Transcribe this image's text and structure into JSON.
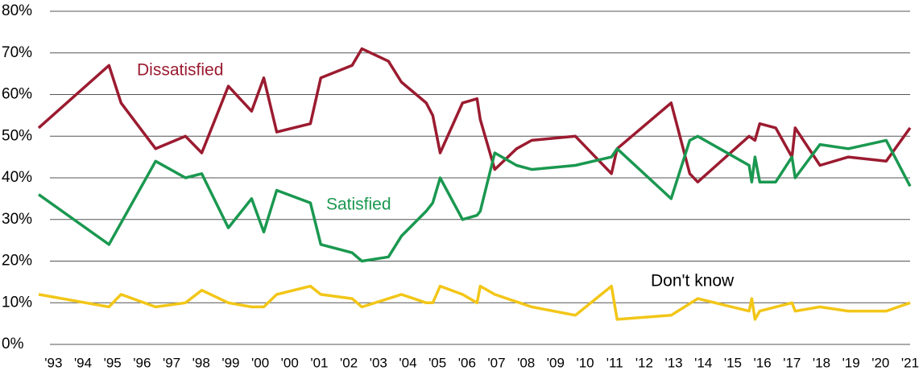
{
  "chart_data": {
    "type": "line",
    "xlim": [
      -0.5,
      29
    ],
    "xticks": [
      {
        "value": 0,
        "label": "'93"
      },
      {
        "value": 1,
        "label": "'94"
      },
      {
        "value": 2,
        "label": "'95"
      },
      {
        "value": 3,
        "label": "'96"
      },
      {
        "value": 4,
        "label": "'97"
      },
      {
        "value": 5,
        "label": "'98"
      },
      {
        "value": 6,
        "label": "'99"
      },
      {
        "value": 7,
        "label": "'00"
      },
      {
        "value": 8,
        "label": "'00"
      },
      {
        "value": 9,
        "label": "'01"
      },
      {
        "value": 10,
        "label": "'02"
      },
      {
        "value": 11,
        "label": "'03"
      },
      {
        "value": 12,
        "label": "'04"
      },
      {
        "value": 13,
        "label": "'05"
      },
      {
        "value": 14,
        "label": "'06"
      },
      {
        "value": 15,
        "label": "'07"
      },
      {
        "value": 16,
        "label": "'08"
      },
      {
        "value": 17,
        "label": "'09"
      },
      {
        "value": 18,
        "label": "'10"
      },
      {
        "value": 19,
        "label": "'11"
      },
      {
        "value": 20,
        "label": "'12"
      },
      {
        "value": 21,
        "label": "'13"
      },
      {
        "value": 22,
        "label": "'14"
      },
      {
        "value": 23,
        "label": "'15"
      },
      {
        "value": 24,
        "label": "'16"
      },
      {
        "value": 25,
        "label": "'17"
      },
      {
        "value": 26,
        "label": "'18"
      },
      {
        "value": 27,
        "label": "'19"
      },
      {
        "value": 28,
        "label": "'20"
      },
      {
        "value": 29,
        "label": "'21"
      }
    ],
    "ylim": [
      0,
      80
    ],
    "yticks": [
      {
        "value": 0,
        "label": "0%"
      },
      {
        "value": 10,
        "label": "10%"
      },
      {
        "value": 20,
        "label": "20%"
      },
      {
        "value": 30,
        "label": "30%"
      },
      {
        "value": 40,
        "label": "40%"
      },
      {
        "value": 50,
        "label": "50%"
      },
      {
        "value": 60,
        "label": "60%"
      },
      {
        "value": 70,
        "label": "70%"
      },
      {
        "value": 80,
        "label": "80%"
      }
    ],
    "grid": true,
    "series": [
      {
        "name": "Dissatisfied",
        "color": "#9b1b30",
        "x": [
          -0.5,
          1.88,
          2.29,
          3.46,
          4.47,
          5.02,
          5.92,
          6.71,
          7.12,
          7.56,
          8.7,
          9.05,
          10.11,
          10.44,
          11.34,
          11.78,
          12.62,
          12.84,
          13.09,
          13.85,
          14.34,
          14.45,
          14.94,
          15.68,
          16.19,
          17.67,
          18.89,
          19.08,
          20.91,
          21.54,
          21.81,
          23.55,
          23.75,
          23.91,
          24.45,
          25,
          25.11,
          25.95,
          26.91,
          28.19,
          29
        ],
        "values": [
          52,
          67,
          58,
          47,
          50,
          46,
          62,
          56,
          64,
          51,
          53,
          64,
          67,
          71,
          68,
          63,
          58,
          55,
          46,
          58,
          59,
          54,
          42,
          47,
          49,
          50,
          41,
          47,
          58,
          41,
          39,
          50,
          49,
          53,
          52,
          45,
          52,
          43,
          45,
          44,
          52
        ]
      },
      {
        "name": "Satisfied",
        "color": "#1a9850",
        "x": [
          -0.5,
          1.88,
          3.46,
          4.47,
          5.02,
          5.92,
          6.71,
          7.12,
          7.56,
          8.7,
          9.05,
          10.11,
          10.44,
          11.34,
          11.78,
          12.62,
          12.84,
          13.09,
          13.85,
          14.34,
          14.45,
          14.94,
          15.68,
          16.19,
          17.67,
          18.89,
          19.08,
          20.91,
          21.54,
          21.81,
          23.55,
          23.64,
          23.75,
          23.91,
          24.45,
          25,
          25.11,
          25.95,
          26.91,
          28.19,
          29
        ],
        "values": [
          36,
          24,
          44,
          40,
          41,
          28,
          35,
          27,
          37,
          34,
          24,
          22,
          20,
          21,
          26,
          32,
          34,
          40,
          30,
          31,
          32,
          46,
          43,
          42,
          43,
          45,
          47,
          35,
          49,
          50,
          43,
          39,
          45,
          39,
          39,
          45,
          40,
          48,
          47,
          49,
          38
        ]
      },
      {
        "name": "Don't know",
        "color": "#f2c618",
        "x": [
          -0.5,
          1.88,
          2.29,
          3.46,
          4.47,
          5.02,
          5.92,
          6.71,
          7.12,
          7.56,
          8.7,
          9.05,
          10.11,
          10.44,
          11.34,
          11.78,
          12.62,
          12.84,
          13.09,
          13.85,
          14.34,
          14.45,
          14.94,
          16.19,
          17.67,
          18.89,
          19.08,
          20.91,
          21.81,
          23.55,
          23.64,
          23.75,
          23.91,
          25,
          25.11,
          25.95,
          26.91,
          28.19,
          29
        ],
        "values": [
          12,
          9,
          12,
          9,
          10,
          13,
          10,
          9,
          9,
          12,
          14,
          12,
          11,
          9,
          11,
          12,
          10,
          10,
          14,
          12,
          10,
          14,
          12,
          9,
          7,
          14,
          6,
          7,
          11,
          8,
          11,
          6,
          8,
          10,
          8,
          9,
          8,
          8,
          10
        ]
      }
    ]
  }
}
